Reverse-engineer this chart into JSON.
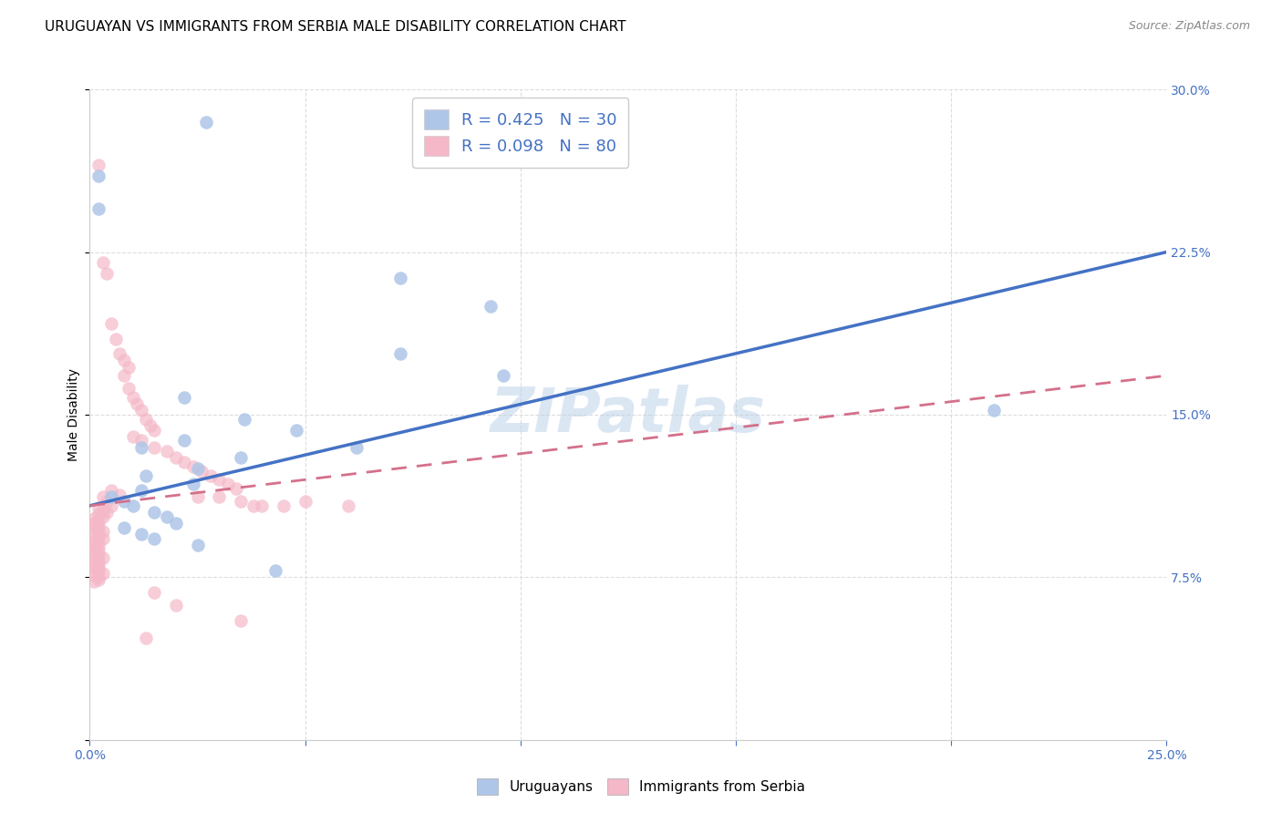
{
  "title": "URUGUAYAN VS IMMIGRANTS FROM SERBIA MALE DISABILITY CORRELATION CHART",
  "source": "Source: ZipAtlas.com",
  "ylabel": "Male Disability",
  "watermark": "ZIPatlas",
  "xlim": [
    0.0,
    0.25
  ],
  "ylim": [
    0.0,
    0.3
  ],
  "xtick_positions": [
    0.0,
    0.05,
    0.1,
    0.15,
    0.2,
    0.25
  ],
  "xtick_labels": [
    "0.0%",
    "",
    "",
    "",
    "",
    "25.0%"
  ],
  "ytick_positions": [
    0.0,
    0.075,
    0.15,
    0.225,
    0.3
  ],
  "ytick_labels": [
    "",
    "7.5%",
    "15.0%",
    "22.5%",
    "30.0%"
  ],
  "legend_label_uruguayans": "Uruguayans",
  "legend_label_serbia": "Immigrants from Serbia",
  "uruguayan_color": "#aec6e8",
  "serbia_color": "#f4b8c8",
  "trendline_uruguayan_color": "#4472c4",
  "trendline_serbia_color": "#d4708a",
  "trendline_uruguayan": [
    [
      0.0,
      0.108
    ],
    [
      0.25,
      0.225
    ]
  ],
  "trendline_serbia": [
    [
      0.0,
      0.108
    ],
    [
      0.25,
      0.168
    ]
  ],
  "uruguayan_points": [
    [
      0.027,
      0.285
    ],
    [
      0.002,
      0.26
    ],
    [
      0.002,
      0.245
    ],
    [
      0.072,
      0.213
    ],
    [
      0.093,
      0.2
    ],
    [
      0.072,
      0.178
    ],
    [
      0.096,
      0.168
    ],
    [
      0.022,
      0.158
    ],
    [
      0.036,
      0.148
    ],
    [
      0.048,
      0.143
    ],
    [
      0.022,
      0.138
    ],
    [
      0.012,
      0.135
    ],
    [
      0.062,
      0.135
    ],
    [
      0.035,
      0.13
    ],
    [
      0.025,
      0.125
    ],
    [
      0.013,
      0.122
    ],
    [
      0.024,
      0.118
    ],
    [
      0.012,
      0.115
    ],
    [
      0.005,
      0.112
    ],
    [
      0.008,
      0.11
    ],
    [
      0.01,
      0.108
    ],
    [
      0.015,
      0.105
    ],
    [
      0.018,
      0.103
    ],
    [
      0.02,
      0.1
    ],
    [
      0.008,
      0.098
    ],
    [
      0.012,
      0.095
    ],
    [
      0.015,
      0.093
    ],
    [
      0.025,
      0.09
    ],
    [
      0.043,
      0.078
    ],
    [
      0.21,
      0.152
    ]
  ],
  "serbia_points": [
    [
      0.002,
      0.265
    ],
    [
      0.003,
      0.22
    ],
    [
      0.004,
      0.215
    ],
    [
      0.005,
      0.192
    ],
    [
      0.006,
      0.185
    ],
    [
      0.007,
      0.178
    ],
    [
      0.008,
      0.175
    ],
    [
      0.009,
      0.172
    ],
    [
      0.008,
      0.168
    ],
    [
      0.009,
      0.162
    ],
    [
      0.01,
      0.158
    ],
    [
      0.011,
      0.155
    ],
    [
      0.012,
      0.152
    ],
    [
      0.013,
      0.148
    ],
    [
      0.014,
      0.145
    ],
    [
      0.015,
      0.143
    ],
    [
      0.01,
      0.14
    ],
    [
      0.012,
      0.138
    ],
    [
      0.015,
      0.135
    ],
    [
      0.018,
      0.133
    ],
    [
      0.02,
      0.13
    ],
    [
      0.022,
      0.128
    ],
    [
      0.024,
      0.126
    ],
    [
      0.026,
      0.124
    ],
    [
      0.028,
      0.122
    ],
    [
      0.03,
      0.12
    ],
    [
      0.032,
      0.118
    ],
    [
      0.034,
      0.116
    ],
    [
      0.005,
      0.115
    ],
    [
      0.007,
      0.113
    ],
    [
      0.003,
      0.112
    ],
    [
      0.004,
      0.11
    ],
    [
      0.005,
      0.108
    ],
    [
      0.002,
      0.107
    ],
    [
      0.003,
      0.106
    ],
    [
      0.004,
      0.105
    ],
    [
      0.002,
      0.104
    ],
    [
      0.003,
      0.103
    ],
    [
      0.001,
      0.102
    ],
    [
      0.002,
      0.101
    ],
    [
      0.001,
      0.1
    ],
    [
      0.002,
      0.099
    ],
    [
      0.001,
      0.098
    ],
    [
      0.002,
      0.097
    ],
    [
      0.003,
      0.096
    ],
    [
      0.001,
      0.095
    ],
    [
      0.002,
      0.094
    ],
    [
      0.003,
      0.093
    ],
    [
      0.001,
      0.092
    ],
    [
      0.002,
      0.091
    ],
    [
      0.001,
      0.09
    ],
    [
      0.002,
      0.089
    ],
    [
      0.001,
      0.088
    ],
    [
      0.002,
      0.087
    ],
    [
      0.001,
      0.086
    ],
    [
      0.002,
      0.085
    ],
    [
      0.003,
      0.084
    ],
    [
      0.001,
      0.083
    ],
    [
      0.002,
      0.082
    ],
    [
      0.001,
      0.081
    ],
    [
      0.002,
      0.08
    ],
    [
      0.001,
      0.079
    ],
    [
      0.002,
      0.078
    ],
    [
      0.003,
      0.077
    ],
    [
      0.001,
      0.076
    ],
    [
      0.002,
      0.075
    ],
    [
      0.002,
      0.074
    ],
    [
      0.001,
      0.073
    ],
    [
      0.025,
      0.112
    ],
    [
      0.03,
      0.112
    ],
    [
      0.035,
      0.11
    ],
    [
      0.04,
      0.108
    ],
    [
      0.045,
      0.108
    ],
    [
      0.05,
      0.11
    ],
    [
      0.038,
      0.108
    ],
    [
      0.06,
      0.108
    ],
    [
      0.015,
      0.068
    ],
    [
      0.02,
      0.062
    ],
    [
      0.035,
      0.055
    ],
    [
      0.013,
      0.047
    ]
  ],
  "background_color": "#ffffff",
  "grid_color": "#dddddd",
  "title_fontsize": 11,
  "axis_label_fontsize": 10,
  "tick_fontsize": 10,
  "tick_color": "#4472c4"
}
